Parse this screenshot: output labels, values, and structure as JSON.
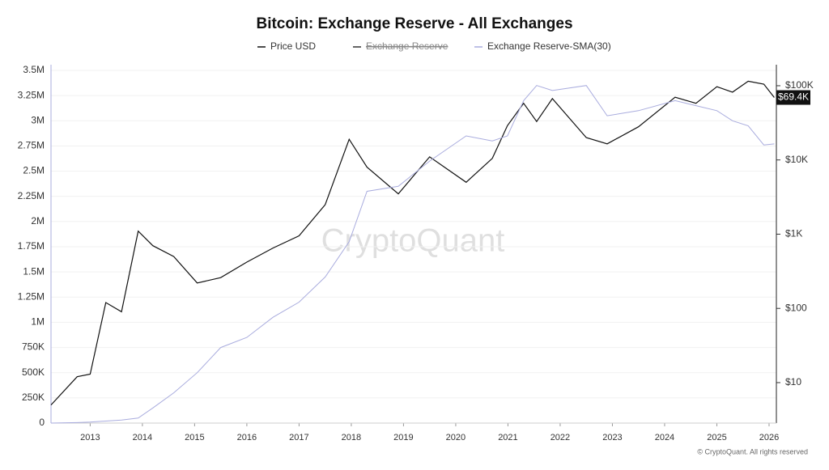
{
  "chart_data": {
    "type": "line",
    "title": "Bitcoin: Exchange Reserve - All Exchanges",
    "watermark": "CryptoQuant",
    "footer": "© CryptoQuant. All rights reserved",
    "hidden_series": [
      "Exchange Reserve"
    ],
    "x": [
      2012.25,
      2012.75,
      2013.0,
      2013.3,
      2013.6,
      2013.92,
      2014.2,
      2014.6,
      2015.05,
      2015.5,
      2016.0,
      2016.5,
      2017.0,
      2017.5,
      2017.96,
      2018.3,
      2018.9,
      2019.5,
      2020.2,
      2020.7,
      2020.99,
      2021.3,
      2021.55,
      2021.85,
      2022.5,
      2022.9,
      2023.5,
      2024.2,
      2024.6,
      2025.0,
      2025.3,
      2025.6,
      2025.9,
      2026.1
    ],
    "series": [
      {
        "name": "Price USD",
        "color": "#111111",
        "axis": "y2",
        "values": [
          5,
          12,
          13,
          120,
          90,
          1100,
          700,
          500,
          220,
          260,
          420,
          650,
          950,
          2500,
          19000,
          8000,
          3500,
          11000,
          5000,
          10500,
          29000,
          58000,
          33000,
          67000,
          20000,
          16500,
          28000,
          70000,
          58000,
          97000,
          82000,
          115000,
          105000,
          69400
        ]
      },
      {
        "name": "Exchange Reserve-SMA(30)",
        "color": "#a9acde",
        "values": [
          0,
          5000,
          10000,
          20000,
          30000,
          50000,
          150000,
          300000,
          500000,
          750000,
          850000,
          1050000,
          1200000,
          1450000,
          1800000,
          2300000,
          2350000,
          2600000,
          2850000,
          2800000,
          2850000,
          3200000,
          3350000,
          3300000,
          3350000,
          3050000,
          3100000,
          3200000,
          3150000,
          3100000,
          3000000,
          2950000,
          2760000,
          2770000
        ]
      }
    ],
    "last_label": {
      "value": 69400,
      "label": "$69.4K"
    },
    "xlim": [
      2012.25,
      2026.14
    ],
    "xticks": [
      2013,
      2014,
      2015,
      2016,
      2017,
      2018,
      2019,
      2020,
      2021,
      2022,
      2023,
      2024,
      2025,
      2026
    ],
    "ylim": [
      0,
      3500000
    ],
    "yticks": [
      0,
      {
        "value": 250000,
        "label": "250K"
      },
      {
        "value": 500000,
        "label": "500K"
      },
      {
        "value": 750000,
        "label": "750K"
      },
      {
        "value": 1000000,
        "label": "1M"
      },
      {
        "value": 1250000,
        "label": "1.25M"
      },
      {
        "value": 1500000,
        "label": "1.5M"
      },
      {
        "value": 1750000,
        "label": "1.75M"
      },
      {
        "value": 2000000,
        "label": "2M"
      },
      {
        "value": 2250000,
        "label": "2.25M"
      },
      {
        "value": 2500000,
        "label": "2.5M"
      },
      {
        "value": 2750000,
        "label": "2.75M"
      },
      {
        "value": 3000000,
        "label": "3M"
      },
      {
        "value": 3250000,
        "label": "3.25M"
      },
      {
        "value": 3500000,
        "label": "3.5M"
      }
    ],
    "y2lim": [
      2.85,
      161000
    ],
    "y2log": true,
    "y2ticks": [
      {
        "value": 10,
        "label": "$10"
      },
      {
        "value": 100,
        "label": "$100"
      },
      {
        "value": 1000,
        "label": "$1K"
      },
      {
        "value": 10000,
        "label": "$10K"
      },
      {
        "value": 100000,
        "label": "$100K"
      }
    ],
    "grid": true
  }
}
